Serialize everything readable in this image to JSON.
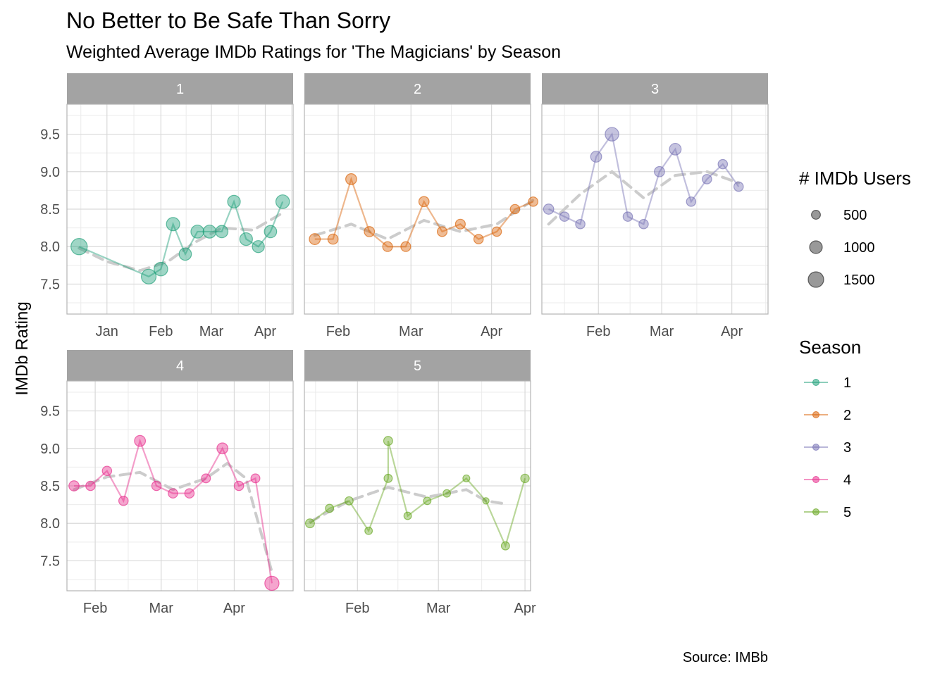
{
  "chart_data": {
    "type": "scatter",
    "title": "No Better to Be Safe Than Sorry",
    "subtitle": "Weighted Average IMDb Ratings for 'The Magicians' by Season",
    "ylabel": "IMDb Rating",
    "caption": "Source: IMBb",
    "ylim": [
      7.1,
      9.9
    ],
    "yticks": [
      7.5,
      8.0,
      8.5,
      9.0,
      9.5
    ],
    "ytick_labels": [
      "7.5",
      "8.0",
      "8.5",
      "9.0",
      "9.5"
    ],
    "grid": true,
    "legend_position": "right",
    "size_legend": {
      "title": "# IMDb Users",
      "entries": [
        {
          "label": "500",
          "value": 500
        },
        {
          "label": "1000",
          "value": 1000
        },
        {
          "label": "1500",
          "value": 1500
        }
      ]
    },
    "color_legend": {
      "title": "Season",
      "entries": [
        {
          "label": "1",
          "color": "#1b9e77"
        },
        {
          "label": "2",
          "color": "#d95f02"
        },
        {
          "label": "3",
          "color": "#7570b3"
        },
        {
          "label": "4",
          "color": "#e7298a"
        },
        {
          "label": "5",
          "color": "#66a61e"
        }
      ]
    },
    "panels": [
      {
        "label": "1",
        "color": "#1b9e77",
        "xlim": [
          "2015-12-09",
          "2016-04-17"
        ],
        "xticks": [
          {
            "date": "2016-01-01",
            "label": "Jan"
          },
          {
            "date": "2016-02-01",
            "label": "Feb"
          },
          {
            "date": "2016-03-01",
            "label": "Mar"
          },
          {
            "date": "2016-04-01",
            "label": "Apr"
          }
        ],
        "points": [
          {
            "date": "2015-12-16",
            "rating": 8.0,
            "users": 1650
          },
          {
            "date": "2016-01-25",
            "rating": 7.6,
            "users": 1350
          },
          {
            "date": "2016-02-01",
            "rating": 7.7,
            "users": 1150
          },
          {
            "date": "2016-02-08",
            "rating": 8.3,
            "users": 1100
          },
          {
            "date": "2016-02-15",
            "rating": 7.9,
            "users": 950
          },
          {
            "date": "2016-02-22",
            "rating": 8.2,
            "users": 1050
          },
          {
            "date": "2016-02-29",
            "rating": 8.2,
            "users": 1050
          },
          {
            "date": "2016-03-07",
            "rating": 8.2,
            "users": 950
          },
          {
            "date": "2016-03-14",
            "rating": 8.6,
            "users": 1000
          },
          {
            "date": "2016-03-21",
            "rating": 8.1,
            "users": 1000
          },
          {
            "date": "2016-03-28",
            "rating": 8.0,
            "users": 900
          },
          {
            "date": "2016-04-04",
            "rating": 8.2,
            "users": 950
          },
          {
            "date": "2016-04-11",
            "rating": 8.6,
            "users": 1150
          }
        ],
        "smooth": [
          {
            "date": "2015-12-16",
            "rating": 7.98
          },
          {
            "date": "2016-01-01",
            "rating": 7.8
          },
          {
            "date": "2016-01-20",
            "rating": 7.68
          },
          {
            "date": "2016-02-05",
            "rating": 7.8
          },
          {
            "date": "2016-02-20",
            "rating": 8.05
          },
          {
            "date": "2016-03-07",
            "rating": 8.25
          },
          {
            "date": "2016-03-25",
            "rating": 8.22
          },
          {
            "date": "2016-04-11",
            "rating": 8.45
          }
        ]
      },
      {
        "label": "2",
        "color": "#d95f02",
        "xlim": [
          "2017-01-19",
          "2017-04-16"
        ],
        "xticks": [
          {
            "date": "2017-02-01",
            "label": "Feb"
          },
          {
            "date": "2017-03-01",
            "label": "Mar"
          },
          {
            "date": "2017-04-01",
            "label": "Apr"
          }
        ],
        "points": [
          {
            "date": "2017-01-23",
            "rating": 8.1,
            "users": 750
          },
          {
            "date": "2017-01-30",
            "rating": 8.1,
            "users": 650
          },
          {
            "date": "2017-02-06",
            "rating": 8.9,
            "users": 750
          },
          {
            "date": "2017-02-13",
            "rating": 8.2,
            "users": 650
          },
          {
            "date": "2017-02-20",
            "rating": 8.0,
            "users": 600
          },
          {
            "date": "2017-02-27",
            "rating": 8.0,
            "users": 600
          },
          {
            "date": "2017-03-06",
            "rating": 8.6,
            "users": 650
          },
          {
            "date": "2017-03-13",
            "rating": 8.2,
            "users": 600
          },
          {
            "date": "2017-03-20",
            "rating": 8.3,
            "users": 600
          },
          {
            "date": "2017-03-27",
            "rating": 8.1,
            "users": 550
          },
          {
            "date": "2017-04-03",
            "rating": 8.2,
            "users": 550
          },
          {
            "date": "2017-04-10",
            "rating": 8.5,
            "users": 550
          },
          {
            "date": "2017-04-17",
            "rating": 8.6,
            "users": 550
          }
        ],
        "smooth": [
          {
            "date": "2017-01-23",
            "rating": 8.15
          },
          {
            "date": "2017-02-06",
            "rating": 8.3
          },
          {
            "date": "2017-02-20",
            "rating": 8.1
          },
          {
            "date": "2017-03-06",
            "rating": 8.35
          },
          {
            "date": "2017-03-20",
            "rating": 8.2
          },
          {
            "date": "2017-04-03",
            "rating": 8.3
          },
          {
            "date": "2017-04-17",
            "rating": 8.62
          }
        ]
      },
      {
        "label": "3",
        "color": "#7570b3",
        "xlim": [
          "2018-01-07",
          "2018-04-17"
        ],
        "xticks": [
          {
            "date": "2018-02-01",
            "label": "Feb"
          },
          {
            "date": "2018-03-01",
            "label": "Mar"
          },
          {
            "date": "2018-04-01",
            "label": "Apr"
          }
        ],
        "points": [
          {
            "date": "2018-01-10",
            "rating": 8.5,
            "users": 650
          },
          {
            "date": "2018-01-17",
            "rating": 8.4,
            "users": 550
          },
          {
            "date": "2018-01-24",
            "rating": 8.3,
            "users": 550
          },
          {
            "date": "2018-01-31",
            "rating": 9.2,
            "users": 750
          },
          {
            "date": "2018-02-07",
            "rating": 9.5,
            "users": 1150
          },
          {
            "date": "2018-02-14",
            "rating": 8.4,
            "users": 550
          },
          {
            "date": "2018-02-21",
            "rating": 8.3,
            "users": 550
          },
          {
            "date": "2018-02-28",
            "rating": 9.0,
            "users": 650
          },
          {
            "date": "2018-03-07",
            "rating": 9.3,
            "users": 850
          },
          {
            "date": "2018-03-14",
            "rating": 8.6,
            "users": 550
          },
          {
            "date": "2018-03-21",
            "rating": 8.9,
            "users": 550
          },
          {
            "date": "2018-03-28",
            "rating": 9.1,
            "users": 550
          },
          {
            "date": "2018-04-04",
            "rating": 8.8,
            "users": 550
          }
        ],
        "smooth": [
          {
            "date": "2018-01-10",
            "rating": 8.3
          },
          {
            "date": "2018-01-24",
            "rating": 8.7
          },
          {
            "date": "2018-02-07",
            "rating": 9.0
          },
          {
            "date": "2018-02-21",
            "rating": 8.65
          },
          {
            "date": "2018-03-07",
            "rating": 8.95
          },
          {
            "date": "2018-03-21",
            "rating": 9.0
          },
          {
            "date": "2018-04-04",
            "rating": 8.85
          }
        ]
      },
      {
        "label": "4",
        "color": "#e7298a",
        "xlim": [
          "2019-01-20",
          "2019-04-26"
        ],
        "xticks": [
          {
            "date": "2019-02-01",
            "label": "Feb"
          },
          {
            "date": "2019-03-01",
            "label": "Mar"
          },
          {
            "date": "2019-04-01",
            "label": "Apr"
          }
        ],
        "points": [
          {
            "date": "2019-01-23",
            "rating": 8.5,
            "users": 650
          },
          {
            "date": "2019-01-30",
            "rating": 8.5,
            "users": 550
          },
          {
            "date": "2019-02-06",
            "rating": 8.7,
            "users": 550
          },
          {
            "date": "2019-02-13",
            "rating": 8.3,
            "users": 550
          },
          {
            "date": "2019-02-20",
            "rating": 9.1,
            "users": 750
          },
          {
            "date": "2019-02-27",
            "rating": 8.5,
            "users": 550
          },
          {
            "date": "2019-03-06",
            "rating": 8.4,
            "users": 550
          },
          {
            "date": "2019-03-13",
            "rating": 8.4,
            "users": 550
          },
          {
            "date": "2019-03-20",
            "rating": 8.6,
            "users": 500
          },
          {
            "date": "2019-03-27",
            "rating": 9.0,
            "users": 750
          },
          {
            "date": "2019-04-03",
            "rating": 8.5,
            "users": 550
          },
          {
            "date": "2019-04-10",
            "rating": 8.6,
            "users": 500
          },
          {
            "date": "2019-04-17",
            "rating": 7.2,
            "users": 1250
          }
        ],
        "smooth": [
          {
            "date": "2019-01-23",
            "rating": 8.45
          },
          {
            "date": "2019-02-06",
            "rating": 8.62
          },
          {
            "date": "2019-02-20",
            "rating": 8.68
          },
          {
            "date": "2019-03-06",
            "rating": 8.45
          },
          {
            "date": "2019-03-20",
            "rating": 8.6
          },
          {
            "date": "2019-03-29",
            "rating": 8.8
          },
          {
            "date": "2019-04-06",
            "rating": 8.6
          },
          {
            "date": "2019-04-17",
            "rating": 7.35
          }
        ]
      },
      {
        "label": "5",
        "color": "#66a61e",
        "xlim": [
          "2020-01-13",
          "2020-04-03"
        ],
        "xticks": [
          {
            "date": "2020-02-01",
            "label": "Feb"
          },
          {
            "date": "2020-03-01",
            "label": "Mar"
          },
          {
            "date": "2020-04-01",
            "label": "Apr"
          }
        ],
        "points": [
          {
            "date": "2020-01-15",
            "rating": 8.0,
            "users": 500
          },
          {
            "date": "2020-01-22",
            "rating": 8.2,
            "users": 420
          },
          {
            "date": "2020-01-29",
            "rating": 8.3,
            "users": 420
          },
          {
            "date": "2020-02-05",
            "rating": 7.9,
            "users": 350
          },
          {
            "date": "2020-02-12",
            "rating": 8.6,
            "users": 420
          },
          {
            "date": "2020-02-12",
            "rating": 9.1,
            "users": 500
          },
          {
            "date": "2020-02-19",
            "rating": 8.1,
            "users": 350
          },
          {
            "date": "2020-02-26",
            "rating": 8.3,
            "users": 350
          },
          {
            "date": "2020-03-04",
            "rating": 8.4,
            "users": 350
          },
          {
            "date": "2020-03-11",
            "rating": 8.6,
            "users": 300
          },
          {
            "date": "2020-03-18",
            "rating": 8.3,
            "users": 250
          },
          {
            "date": "2020-03-25",
            "rating": 7.7,
            "users": 420
          },
          {
            "date": "2020-04-01",
            "rating": 8.6,
            "users": 450
          }
        ],
        "smooth": [
          {
            "date": "2020-01-15",
            "rating": 8.02
          },
          {
            "date": "2020-01-29",
            "rating": 8.3
          },
          {
            "date": "2020-02-12",
            "rating": 8.48
          },
          {
            "date": "2020-02-26",
            "rating": 8.35
          },
          {
            "date": "2020-03-11",
            "rating": 8.45
          },
          {
            "date": "2020-03-18",
            "rating": 8.3
          },
          {
            "date": "2020-03-25",
            "rating": 8.26
          }
        ]
      }
    ]
  }
}
